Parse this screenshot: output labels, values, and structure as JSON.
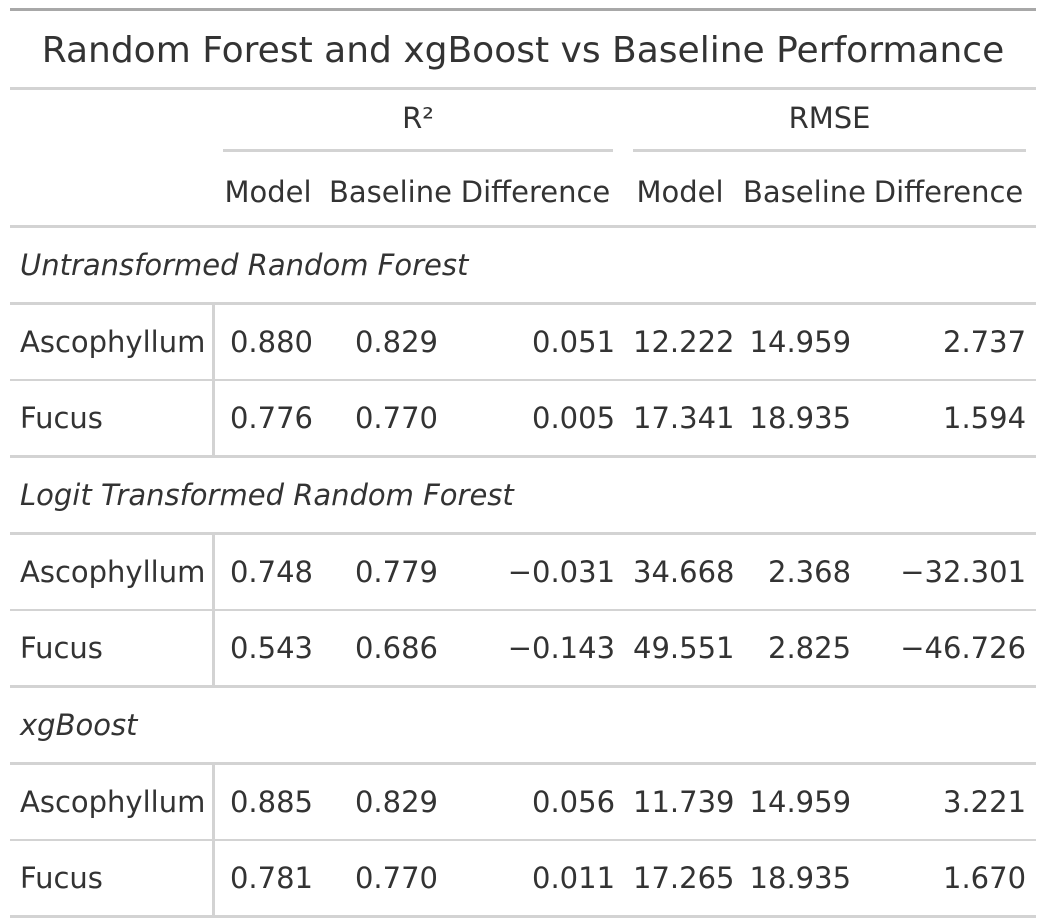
{
  "title": "Random Forest and xgBoost vs Baseline Performance",
  "spanners": {
    "r2": "R²",
    "rmse": "RMSE"
  },
  "columns": [
    "Model",
    "Baseline",
    "Difference",
    "Model",
    "Baseline",
    "Difference"
  ],
  "groups": [
    {
      "label": "Untransformed Random Forest",
      "rows": [
        {
          "name": "Ascophyllum",
          "values": [
            "0.880",
            "0.829",
            "0.051",
            "12.222",
            "14.959",
            "2.737"
          ]
        },
        {
          "name": "Fucus",
          "values": [
            "0.776",
            "0.770",
            "0.005",
            "17.341",
            "18.935",
            "1.594"
          ]
        }
      ]
    },
    {
      "label": "Logit Transformed Random Forest",
      "rows": [
        {
          "name": "Ascophyllum",
          "values": [
            "0.748",
            "0.779",
            "−0.031",
            "34.668",
            "2.368",
            "−32.301"
          ]
        },
        {
          "name": "Fucus",
          "values": [
            "0.543",
            "0.686",
            "−0.143",
            "49.551",
            "2.825",
            "−46.726"
          ]
        }
      ]
    },
    {
      "label": "xgBoost",
      "rows": [
        {
          "name": "Ascophyllum",
          "values": [
            "0.885",
            "0.829",
            "0.056",
            "11.739",
            "14.959",
            "3.221"
          ]
        },
        {
          "name": "Fucus",
          "values": [
            "0.781",
            "0.770",
            "0.011",
            "17.265",
            "18.935",
            "1.670"
          ]
        }
      ]
    }
  ]
}
